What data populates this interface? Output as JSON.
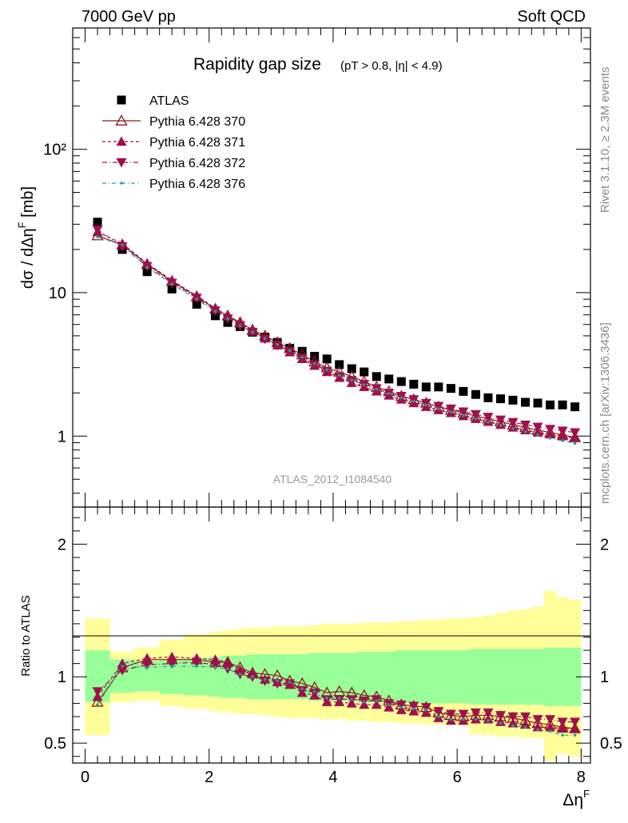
{
  "header": {
    "left": "7000 GeV pp",
    "right": "Soft QCD"
  },
  "side": {
    "rivet": "Rivet 3.1.10, ≥ 2.3M events",
    "mcplots": "mcplots.cern.ch [arXiv:1306.3436]"
  },
  "chart_data": [
    {
      "type": "scatter",
      "panel": "main",
      "title": "Rapidity gap size",
      "subtitle": "(pT > 0.8, |η| < 4.9)",
      "xlabel": "Δη^F",
      "ylabel": "dσ / dΔη^F [mb]",
      "yscale": "log",
      "xlim": [
        -0.2,
        8.15
      ],
      "ylim": [
        0.32,
        700
      ],
      "yticks": [
        "1",
        "10",
        "10²"
      ],
      "watermark": "ATLAS_2012_I1084540",
      "legend_position": "top-left",
      "x": [
        0.2,
        0.6,
        1.0,
        1.4,
        1.8,
        2.1,
        2.3,
        2.5,
        2.7,
        2.9,
        3.1,
        3.3,
        3.5,
        3.7,
        3.9,
        4.1,
        4.3,
        4.5,
        4.7,
        4.9,
        5.1,
        5.3,
        5.5,
        5.7,
        5.9,
        6.1,
        6.3,
        6.5,
        6.7,
        6.9,
        7.1,
        7.3,
        7.5,
        7.7,
        7.9
      ],
      "series": [
        {
          "name": "ATLAS",
          "color": "#000000",
          "marker": "square",
          "values": [
            31,
            20,
            14,
            10.6,
            8.3,
            6.9,
            6.2,
            5.8,
            5.3,
            4.9,
            4.5,
            4.1,
            3.9,
            3.6,
            3.45,
            3.15,
            2.95,
            2.8,
            2.6,
            2.5,
            2.4,
            2.3,
            2.2,
            2.2,
            2.15,
            2.05,
            1.95,
            1.85,
            1.82,
            1.78,
            1.72,
            1.7,
            1.65,
            1.65,
            1.6
          ]
        },
        {
          "name": "Pythia 6.428 370",
          "color": "#8b1a1a",
          "marker": "triangle-open",
          "dash": "solid",
          "values": [
            25.0,
            21.5,
            15.8,
            12.0,
            9.4,
            7.7,
            6.9,
            6.2,
            5.5,
            5.0,
            4.5,
            4.1,
            3.7,
            3.3,
            3.0,
            2.8,
            2.6,
            2.4,
            2.2,
            2.05,
            1.9,
            1.8,
            1.7,
            1.6,
            1.52,
            1.45,
            1.38,
            1.32,
            1.26,
            1.2,
            1.15,
            1.1,
            1.06,
            1.02,
            0.98
          ]
        },
        {
          "name": "Pythia 6.428 371",
          "color": "#a0104d",
          "marker": "triangle-up",
          "dash": "4,3",
          "values": [
            26.5,
            22.0,
            16.0,
            12.2,
            9.5,
            7.8,
            6.9,
            6.1,
            5.4,
            4.8,
            4.3,
            3.85,
            3.45,
            3.1,
            2.8,
            2.55,
            2.35,
            2.2,
            2.05,
            1.92,
            1.8,
            1.7,
            1.6,
            1.52,
            1.45,
            1.38,
            1.32,
            1.26,
            1.2,
            1.15,
            1.1,
            1.06,
            1.03,
            1.0,
            0.97
          ]
        },
        {
          "name": "Pythia 6.428 372",
          "color": "#a0104d",
          "marker": "triangle-down",
          "dash": "6,3,1,3",
          "values": [
            27.5,
            21.0,
            15.3,
            11.7,
            9.2,
            7.5,
            6.6,
            5.9,
            5.3,
            4.75,
            4.3,
            3.9,
            3.5,
            3.15,
            2.85,
            2.6,
            2.45,
            2.3,
            2.15,
            2.0,
            1.9,
            1.8,
            1.7,
            1.62,
            1.55,
            1.48,
            1.42,
            1.36,
            1.3,
            1.25,
            1.2,
            1.16,
            1.12,
            1.09,
            1.06
          ]
        },
        {
          "name": "Pythia 6.428 376",
          "color": "#20a090",
          "marker": "dot",
          "dash": "5,3,1,3",
          "values": [
            24.5,
            21.5,
            15.0,
            11.5,
            9.0,
            7.4,
            6.6,
            5.9,
            5.3,
            4.8,
            4.35,
            3.95,
            3.55,
            3.2,
            2.9,
            2.65,
            2.45,
            2.28,
            2.12,
            1.98,
            1.85,
            1.75,
            1.65,
            1.55,
            1.47,
            1.39,
            1.32,
            1.25,
            1.19,
            1.13,
            1.07,
            1.02,
            0.97,
            0.93,
            0.89
          ]
        }
      ]
    },
    {
      "type": "line",
      "panel": "ratio",
      "ylabel": "Ratio to ATLAS",
      "xlabel": "Δη^F",
      "xlim": [
        -0.2,
        8.15
      ],
      "ylim": [
        0.35,
        2.28
      ],
      "yticks": [
        0.5,
        1,
        2
      ],
      "xticks": [
        0,
        2,
        4,
        6,
        8
      ],
      "bin_edges": [
        0.0,
        0.4,
        0.8,
        1.2,
        1.6,
        2.0,
        2.2,
        2.4,
        2.6,
        2.8,
        3.0,
        3.2,
        3.4,
        3.6,
        3.8,
        4.0,
        4.2,
        4.4,
        4.6,
        4.8,
        5.0,
        5.2,
        5.4,
        5.6,
        5.8,
        6.0,
        6.2,
        6.4,
        6.6,
        6.8,
        7.0,
        7.2,
        7.4,
        7.6,
        7.8,
        8.0
      ],
      "band_green": {
        "lo": [
          0.81,
          0.88,
          0.89,
          0.87,
          0.86,
          0.85,
          0.84,
          0.84,
          0.83,
          0.83,
          0.83,
          0.83,
          0.83,
          0.82,
          0.82,
          0.82,
          0.82,
          0.81,
          0.81,
          0.81,
          0.8,
          0.8,
          0.8,
          0.8,
          0.8,
          0.8,
          0.79,
          0.79,
          0.79,
          0.79,
          0.79,
          0.79,
          0.78,
          0.78,
          0.78
        ],
        "hi": [
          1.2,
          1.13,
          1.12,
          1.13,
          1.14,
          1.15,
          1.16,
          1.16,
          1.17,
          1.17,
          1.17,
          1.17,
          1.17,
          1.18,
          1.18,
          1.18,
          1.18,
          1.19,
          1.19,
          1.19,
          1.2,
          1.2,
          1.2,
          1.2,
          1.2,
          1.2,
          1.21,
          1.21,
          1.21,
          1.21,
          1.21,
          1.21,
          1.22,
          1.22,
          1.22
        ]
      },
      "band_yellow": {
        "lo": [
          0.56,
          0.81,
          0.82,
          0.78,
          0.76,
          0.74,
          0.73,
          0.72,
          0.72,
          0.71,
          0.7,
          0.69,
          0.69,
          0.69,
          0.68,
          0.68,
          0.67,
          0.67,
          0.66,
          0.66,
          0.65,
          0.65,
          0.64,
          0.64,
          0.64,
          0.63,
          0.57,
          0.56,
          0.55,
          0.55,
          0.54,
          0.54,
          0.37,
          0.42,
          0.4
        ],
        "hi": [
          1.44,
          1.19,
          1.22,
          1.28,
          1.32,
          1.34,
          1.35,
          1.36,
          1.37,
          1.37,
          1.38,
          1.38,
          1.38,
          1.39,
          1.4,
          1.4,
          1.4,
          1.41,
          1.41,
          1.41,
          1.42,
          1.42,
          1.43,
          1.43,
          1.44,
          1.44,
          1.45,
          1.46,
          1.48,
          1.5,
          1.51,
          1.53,
          1.65,
          1.6,
          1.58
        ]
      },
      "series": [
        {
          "name": "Pythia 6.428 370",
          "values": [
            0.81,
            1.07,
            1.13,
            1.13,
            1.13,
            1.11,
            1.11,
            1.07,
            1.03,
            1.02,
            1.01,
            0.97,
            0.95,
            0.92,
            0.88,
            0.89,
            0.88,
            0.86,
            0.85,
            0.82,
            0.79,
            0.78,
            0.77,
            0.73,
            0.71,
            0.7,
            0.71,
            0.71,
            0.7,
            0.69,
            0.67,
            0.65,
            0.64,
            0.62,
            0.61
          ]
        },
        {
          "name": "Pythia 6.428 371",
          "values": [
            0.85,
            1.1,
            1.14,
            1.15,
            1.14,
            1.13,
            1.11,
            1.05,
            1.02,
            0.98,
            0.96,
            0.94,
            0.88,
            0.86,
            0.81,
            0.81,
            0.8,
            0.79,
            0.79,
            0.77,
            0.75,
            0.74,
            0.73,
            0.69,
            0.67,
            0.67,
            0.68,
            0.68,
            0.66,
            0.65,
            0.64,
            0.62,
            0.62,
            0.61,
            0.61
          ]
        },
        {
          "name": "Pythia 6.428 372",
          "values": [
            0.89,
            1.05,
            1.09,
            1.1,
            1.11,
            1.09,
            1.06,
            1.02,
            1.0,
            0.97,
            0.95,
            0.95,
            0.9,
            0.88,
            0.83,
            0.83,
            0.83,
            0.82,
            0.83,
            0.8,
            0.79,
            0.78,
            0.77,
            0.74,
            0.72,
            0.72,
            0.73,
            0.73,
            0.71,
            0.7,
            0.7,
            0.68,
            0.68,
            0.66,
            0.66
          ]
        },
        {
          "name": "Pythia 6.428 376",
          "values": [
            0.79,
            1.08,
            1.07,
            1.08,
            1.08,
            1.07,
            1.06,
            1.02,
            1.0,
            0.98,
            0.97,
            0.96,
            0.91,
            0.89,
            0.84,
            0.84,
            0.83,
            0.81,
            0.82,
            0.79,
            0.77,
            0.76,
            0.75,
            0.7,
            0.68,
            0.68,
            0.68,
            0.67,
            0.65,
            0.63,
            0.62,
            0.6,
            0.59,
            0.56,
            0.56
          ]
        }
      ]
    }
  ]
}
